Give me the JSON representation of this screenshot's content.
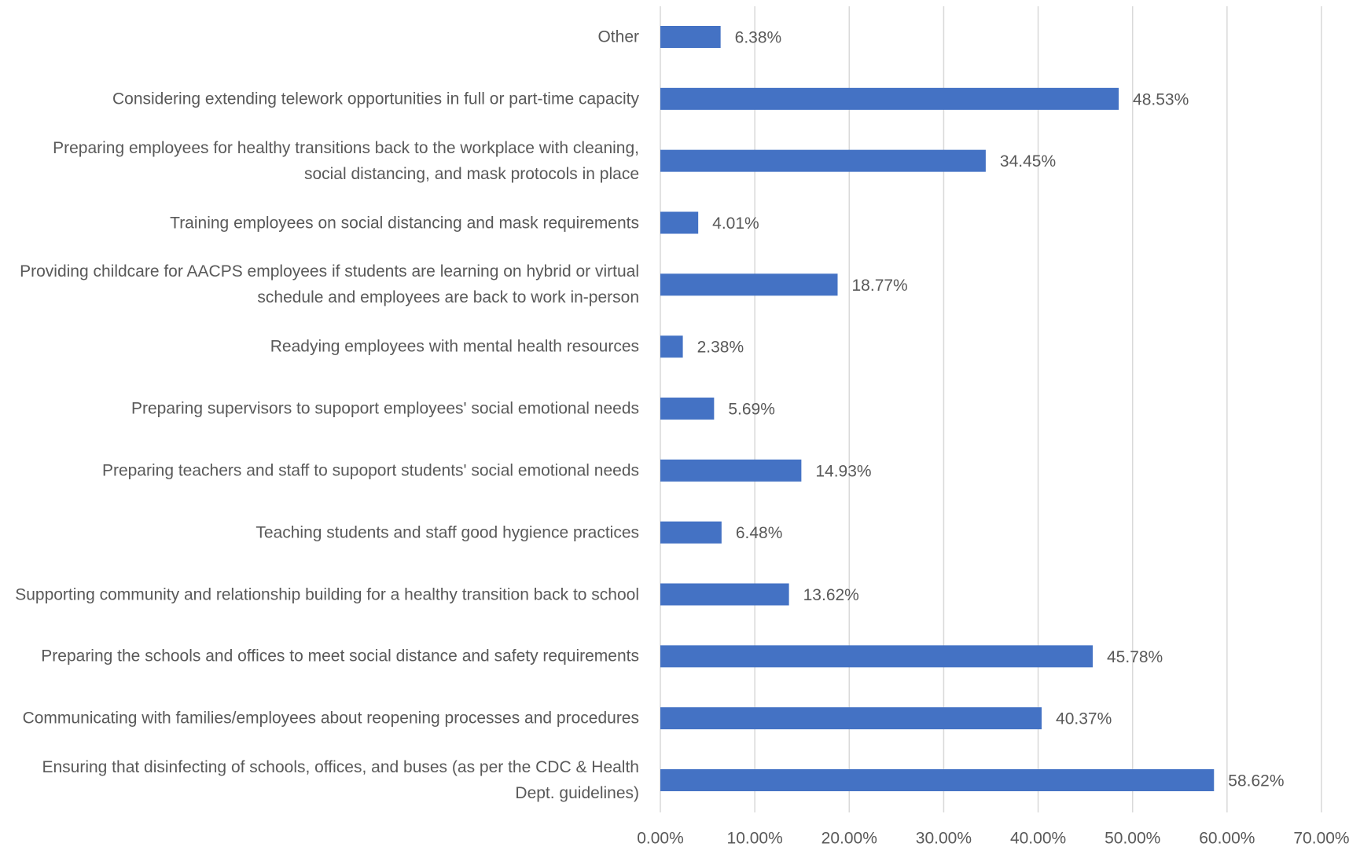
{
  "chart_data": {
    "type": "bar",
    "orientation": "horizontal",
    "color": "#4472c4",
    "grid": true,
    "categories": [
      "Other",
      "Considering extending telework opportunities in full or part-time capacity",
      "Preparing employees for healthy transitions back to the workplace with cleaning, social distancing, and mask protocols in place",
      "Training employees on social distancing and mask requirements",
      "Providing childcare for AACPS employees if students are learning on hybrid or virtual schedule and employees are back to work in-person",
      "Readying employees with mental health resources",
      "Preparing supervisors to supoport employees' social emotional needs",
      "Preparing teachers and staff to supoport students' social emotional needs",
      "Teaching students and staff good hygience practices",
      "Supporting community and relationship building for a healthy transition back to school",
      "Preparing the schools and offices to meet social distance and safety requirements",
      "Communicating with families/employees about reopening processes and procedures",
      "Ensuring that disinfecting of schools, offices, and buses (as per the CDC & Health Dept. guidelines)"
    ],
    "values": [
      6.38,
      48.53,
      34.45,
      4.01,
      18.77,
      2.38,
      5.69,
      14.93,
      6.48,
      13.62,
      45.78,
      40.37,
      58.62
    ],
    "value_labels": [
      "6.38%",
      "48.53%",
      "34.45%",
      "4.01%",
      "18.77%",
      "2.38%",
      "5.69%",
      "14.93%",
      "6.48%",
      "13.62%",
      "45.78%",
      "40.37%",
      "58.62%"
    ],
    "xlim": [
      0,
      70
    ],
    "xticks": [
      {
        "value": 0,
        "label": "0.00%"
      },
      {
        "value": 10,
        "label": "10.00%"
      },
      {
        "value": 20,
        "label": "20.00%"
      },
      {
        "value": 30,
        "label": "30.00%"
      },
      {
        "value": 40,
        "label": "40.00%"
      },
      {
        "value": 50,
        "label": "50.00%"
      },
      {
        "value": 60,
        "label": "60.00%"
      },
      {
        "value": 70,
        "label": "70.00%"
      }
    ]
  }
}
